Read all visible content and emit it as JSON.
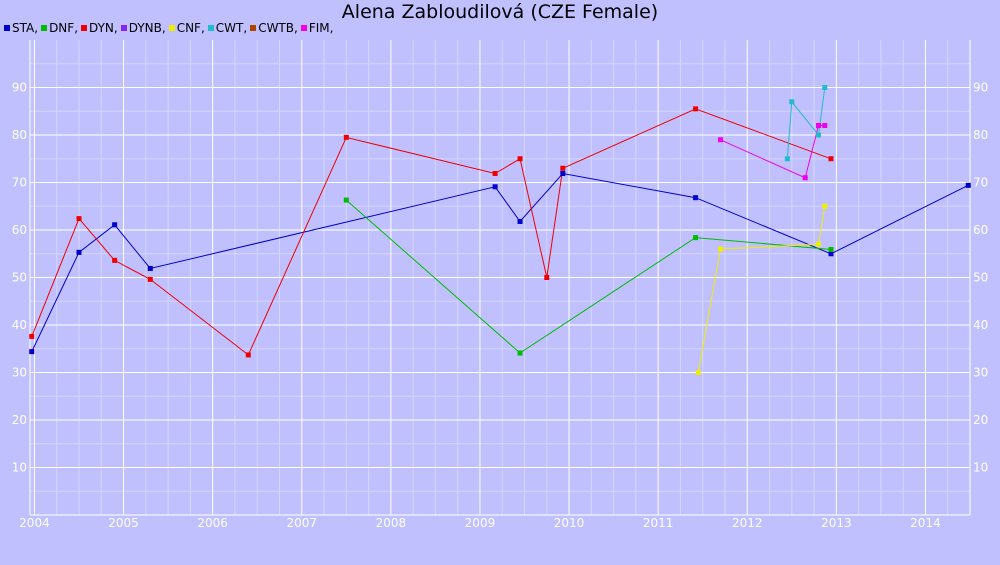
{
  "chart_data": {
    "type": "line",
    "title": "Alena Zabloudilová (CZE Female)",
    "xlabel": "",
    "ylabel": "",
    "xlim": [
      2003.95,
      2014.5
    ],
    "ylim": [
      0,
      100
    ],
    "x_ticks": [
      2004,
      2005,
      2006,
      2007,
      2008,
      2009,
      2010,
      2011,
      2012,
      2013,
      2014
    ],
    "y_ticks": [
      10,
      20,
      30,
      40,
      50,
      60,
      70,
      80,
      90
    ],
    "grid": true,
    "legend_position": "top-left",
    "series": [
      {
        "name": "STA",
        "color": "#0000cc",
        "points": [
          [
            2003.97,
            34.4
          ],
          [
            2004.5,
            55.3
          ],
          [
            2004.9,
            61.1
          ],
          [
            2005.3,
            51.9
          ],
          [
            2009.17,
            69.1
          ],
          [
            2009.45,
            61.8
          ],
          [
            2009.93,
            71.9
          ],
          [
            2011.42,
            66.8
          ],
          [
            2012.94,
            55.0
          ],
          [
            2014.48,
            69.4
          ]
        ]
      },
      {
        "name": "DNF",
        "color": "#00bb00",
        "points": [
          [
            2007.5,
            66.3
          ],
          [
            2009.45,
            34.1
          ],
          [
            2011.42,
            58.4
          ],
          [
            2012.94,
            55.9
          ]
        ]
      },
      {
        "name": "DYN",
        "color": "#ee0000",
        "points": [
          [
            2003.97,
            37.6
          ],
          [
            2004.5,
            62.4
          ],
          [
            2004.9,
            53.6
          ],
          [
            2005.3,
            49.6
          ],
          [
            2006.4,
            33.7
          ],
          [
            2007.5,
            79.5
          ],
          [
            2009.17,
            71.9
          ],
          [
            2009.45,
            75.0
          ],
          [
            2009.75,
            50.0
          ],
          [
            2009.93,
            73.0
          ],
          [
            2011.42,
            85.5
          ],
          [
            2012.94,
            75.0
          ]
        ]
      },
      {
        "name": "DYNB",
        "color": "#8822ee",
        "points": []
      },
      {
        "name": "CNF",
        "color": "#eeee00",
        "points": [
          [
            2011.45,
            30.0
          ],
          [
            2011.7,
            56.0
          ],
          [
            2012.8,
            57.0
          ],
          [
            2012.87,
            65.0
          ]
        ]
      },
      {
        "name": "CWT",
        "color": "#22bbcc",
        "points": [
          [
            2012.45,
            75.0
          ],
          [
            2012.5,
            87.0
          ],
          [
            2012.8,
            80.0
          ],
          [
            2012.87,
            90.0
          ]
        ]
      },
      {
        "name": "CWTB",
        "color": "#aa4400",
        "points": []
      },
      {
        "name": "FIM",
        "color": "#ee00ee",
        "points": [
          [
            2011.7,
            79.0
          ],
          [
            2012.65,
            71.0
          ],
          [
            2012.8,
            82.0
          ],
          [
            2012.87,
            82.0
          ]
        ]
      }
    ]
  }
}
